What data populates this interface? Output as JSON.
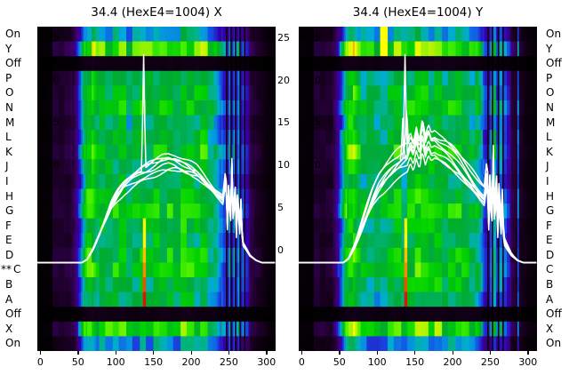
{
  "figure": {
    "background": "#ffffff",
    "text_color": "#000000",
    "trace_color": "#ffffff"
  },
  "left_axis": {
    "rows": [
      "On",
      "Y",
      "Off",
      "P",
      "O",
      "N",
      "M",
      "L",
      "K",
      "J",
      "I",
      "H",
      "G",
      "F",
      "E",
      "D",
      "C",
      "B",
      "A",
      "Off",
      "X",
      "On"
    ],
    "marker": "**",
    "marker_row_index": 16
  },
  "right_axis": {
    "rows": [
      "On",
      "Y",
      "Off",
      "P",
      "O",
      "N",
      "M",
      "L",
      "K",
      "J",
      "I",
      "H",
      "G",
      "F",
      "E",
      "D",
      "C",
      "B",
      "A",
      "Off",
      "X",
      "On"
    ]
  },
  "y_axis": {
    "tick_values": [
      25,
      20,
      15,
      10,
      5,
      0
    ],
    "gap_tick_values": [
      25,
      20,
      15,
      10,
      5,
      0
    ],
    "value_top": 26.3,
    "value_bottom": -11.9
  },
  "x_axis": {
    "tick_values": [
      0,
      50,
      100,
      150,
      200,
      250,
      300
    ],
    "range": [
      -4,
      312
    ]
  },
  "chart_data": [
    {
      "type": "heatmap",
      "title": "34.4 (HexE4=1004) X",
      "axis_label": "X",
      "seed": 11,
      "rows": [
        "On",
        "Y",
        "Off",
        "P",
        "O",
        "N",
        "M",
        "L",
        "K",
        "J",
        "I",
        "H",
        "G",
        "F",
        "E",
        "D",
        "C",
        "B",
        "A",
        "Off",
        "X",
        "On"
      ],
      "x_ticks": [
        0,
        50,
        100,
        150,
        200,
        250,
        300
      ],
      "y_ticks": [
        25,
        20,
        15,
        10,
        5,
        0
      ],
      "x_range": [
        -4,
        312
      ],
      "value_top": 26.3,
      "value_bottom": -11.9,
      "baseline": -1.5,
      "row_gains": [
        0.5,
        0.85,
        0.06,
        0.62,
        0.68,
        0.72,
        0.6,
        0.66,
        0.74,
        0.64,
        0.6,
        0.7,
        0.76,
        0.66,
        0.62,
        0.7,
        0.74,
        0.66,
        0.6,
        0.06,
        0.82,
        0.45
      ],
      "x_profile": [
        [
          -4,
          0.02
        ],
        [
          14,
          0.02
        ],
        [
          16,
          0.13
        ],
        [
          38,
          0.12
        ],
        [
          44,
          0.2
        ],
        [
          52,
          0.45
        ],
        [
          58,
          0.8
        ],
        [
          62,
          0.95
        ],
        [
          68,
          0.95
        ],
        [
          74,
          0.78
        ],
        [
          100,
          0.76
        ],
        [
          130,
          0.8
        ],
        [
          160,
          0.86
        ],
        [
          190,
          0.8
        ],
        [
          215,
          0.76
        ],
        [
          232,
          0.68
        ],
        [
          238,
          0.52
        ],
        [
          242,
          0.38
        ],
        [
          274,
          0.35
        ],
        [
          278,
          0.16
        ],
        [
          288,
          0.12
        ],
        [
          296,
          0.07
        ],
        [
          302,
          0.04
        ],
        [
          312,
          0.03
        ]
      ],
      "streaks": [
        [
          246,
          3,
          0.1
        ],
        [
          250,
          3,
          0.6
        ],
        [
          253,
          2,
          0.12
        ],
        [
          256,
          3,
          0.55
        ],
        [
          259,
          2,
          0.1
        ],
        [
          262,
          3,
          0.5
        ],
        [
          265,
          2,
          0.1
        ],
        [
          268,
          3,
          0.45
        ],
        [
          271,
          2,
          0.12
        ]
      ],
      "hot_line": {
        "x": 137,
        "rows": [
          13,
          18
        ],
        "v0": 0.88,
        "v1": 1.0
      },
      "hot_spot": {
        "x0": 132,
        "x1": 146,
        "rows": [
          1,
          1
        ],
        "value": 0.78
      },
      "colormap": [
        [
          0,
          "#000000"
        ],
        [
          0.06,
          "#140019"
        ],
        [
          0.14,
          "#3c0064"
        ],
        [
          0.22,
          "#3200b4"
        ],
        [
          0.3,
          "#1450e6"
        ],
        [
          0.38,
          "#00aadc"
        ],
        [
          0.44,
          "#00b478"
        ],
        [
          0.52,
          "#00aa32"
        ],
        [
          0.62,
          "#00d200"
        ],
        [
          0.72,
          "#46f000"
        ],
        [
          0.82,
          "#c8f500"
        ],
        [
          0.9,
          "#ffff00"
        ],
        [
          0.95,
          "#ff8c00"
        ],
        [
          1,
          "#dc1400"
        ]
      ],
      "profile": [
        [
          0,
          -1.5
        ],
        [
          55,
          -1.5
        ],
        [
          62,
          -1.1
        ],
        [
          70,
          0.2
        ],
        [
          78,
          2
        ],
        [
          86,
          4
        ],
        [
          94,
          5.8
        ],
        [
          102,
          7
        ],
        [
          112,
          8.2
        ],
        [
          122,
          9
        ],
        [
          132,
          9.6
        ],
        [
          142,
          10
        ],
        [
          152,
          10.4
        ],
        [
          162,
          10.9
        ],
        [
          170,
          11.1
        ],
        [
          178,
          11
        ],
        [
          188,
          10.6
        ],
        [
          198,
          10.2
        ],
        [
          208,
          9.7
        ],
        [
          218,
          8.8
        ],
        [
          228,
          7.8
        ],
        [
          236,
          7
        ],
        [
          242,
          6.4
        ],
        [
          246,
          9.8
        ],
        [
          248,
          3.2
        ],
        [
          250,
          9
        ],
        [
          252,
          2.6
        ],
        [
          254,
          10.8
        ],
        [
          256,
          3
        ],
        [
          258,
          9.2
        ],
        [
          260,
          2.2
        ],
        [
          262,
          8
        ],
        [
          264,
          1.6
        ],
        [
          266,
          6
        ],
        [
          268,
          1
        ],
        [
          272,
          0.4
        ],
        [
          278,
          -0.6
        ],
        [
          286,
          -1.2
        ],
        [
          294,
          -1.5
        ],
        [
          312,
          -1.5
        ]
      ],
      "trace_scales": [
        1.0,
        0.965,
        0.93,
        0.9,
        0.87,
        0.945,
        0.985
      ],
      "spikes": [
        {
          "trace": 0,
          "x": 137,
          "top": 23
        }
      ]
    },
    {
      "type": "heatmap",
      "title": "34.4 (HexE4=1004) Y",
      "axis_label": "Y",
      "seed": 37,
      "rows": [
        "On",
        "Y",
        "Off",
        "P",
        "O",
        "N",
        "M",
        "L",
        "K",
        "J",
        "I",
        "H",
        "G",
        "F",
        "E",
        "D",
        "C",
        "B",
        "A",
        "Off",
        "X",
        "On"
      ],
      "x_ticks": [
        0,
        50,
        100,
        150,
        200,
        250,
        300
      ],
      "y_ticks": [
        25,
        20,
        15,
        10,
        5,
        0
      ],
      "x_range": [
        -4,
        312
      ],
      "value_top": 26.3,
      "value_bottom": -11.9,
      "baseline": -1.5,
      "row_gains": [
        0.5,
        0.85,
        0.06,
        0.62,
        0.68,
        0.72,
        0.6,
        0.66,
        0.74,
        0.64,
        0.6,
        0.7,
        0.76,
        0.66,
        0.62,
        0.7,
        0.74,
        0.66,
        0.6,
        0.06,
        0.82,
        0.45
      ],
      "x_profile": [
        [
          -4,
          0.02
        ],
        [
          14,
          0.02
        ],
        [
          16,
          0.13
        ],
        [
          38,
          0.12
        ],
        [
          44,
          0.2
        ],
        [
          52,
          0.45
        ],
        [
          58,
          0.8
        ],
        [
          62,
          0.95
        ],
        [
          68,
          0.95
        ],
        [
          74,
          0.78
        ],
        [
          100,
          0.76
        ],
        [
          130,
          0.8
        ],
        [
          160,
          0.86
        ],
        [
          190,
          0.8
        ],
        [
          215,
          0.76
        ],
        [
          232,
          0.68
        ],
        [
          238,
          0.52
        ],
        [
          242,
          0.38
        ],
        [
          274,
          0.35
        ],
        [
          278,
          0.16
        ],
        [
          288,
          0.12
        ],
        [
          296,
          0.07
        ],
        [
          302,
          0.04
        ],
        [
          312,
          0.03
        ]
      ],
      "streaks": [
        [
          246,
          3,
          0.1
        ],
        [
          250,
          3,
          0.6
        ],
        [
          253,
          2,
          0.12
        ],
        [
          256,
          4,
          0.75
        ],
        [
          260,
          2,
          0.1
        ],
        [
          263,
          3,
          0.5
        ],
        [
          266,
          2,
          0.1
        ],
        [
          269,
          3,
          0.45
        ],
        [
          286,
          3,
          0.5
        ]
      ],
      "hot_line": {
        "x": 137,
        "rows": [
          13,
          18
        ],
        "v0": 0.88,
        "v1": 1.0
      },
      "hot_spot": {
        "x0": 103,
        "x1": 112,
        "rows": [
          0,
          1
        ],
        "value": 0.9
      },
      "colormap": [
        [
          0,
          "#000000"
        ],
        [
          0.06,
          "#140019"
        ],
        [
          0.14,
          "#3c0064"
        ],
        [
          0.22,
          "#3200b4"
        ],
        [
          0.3,
          "#1450e6"
        ],
        [
          0.38,
          "#00aadc"
        ],
        [
          0.44,
          "#00b478"
        ],
        [
          0.52,
          "#00aa32"
        ],
        [
          0.62,
          "#00d200"
        ],
        [
          0.72,
          "#46f000"
        ],
        [
          0.82,
          "#c8f500"
        ],
        [
          0.9,
          "#ffff00"
        ],
        [
          0.95,
          "#ff8c00"
        ],
        [
          1,
          "#dc1400"
        ]
      ],
      "profile": [
        [
          0,
          -1.5
        ],
        [
          55,
          -1.5
        ],
        [
          62,
          -1.0
        ],
        [
          70,
          0.5
        ],
        [
          78,
          2.5
        ],
        [
          86,
          4.5
        ],
        [
          94,
          6.5
        ],
        [
          102,
          8
        ],
        [
          112,
          9.2
        ],
        [
          122,
          10.2
        ],
        [
          130,
          10.8
        ],
        [
          136,
          11.2
        ],
        [
          140,
          11.5
        ],
        [
          144,
          12.8
        ],
        [
          148,
          11.8
        ],
        [
          152,
          13.6
        ],
        [
          156,
          12.2
        ],
        [
          160,
          14.6
        ],
        [
          164,
          12.6
        ],
        [
          168,
          13.8
        ],
        [
          172,
          12.8
        ],
        [
          176,
          13
        ],
        [
          182,
          12.6
        ],
        [
          190,
          12.2
        ],
        [
          198,
          11.6
        ],
        [
          208,
          10.6
        ],
        [
          218,
          9.4
        ],
        [
          228,
          8.2
        ],
        [
          236,
          7.2
        ],
        [
          242,
          6.6
        ],
        [
          246,
          10
        ],
        [
          248,
          3.4
        ],
        [
          250,
          9.4
        ],
        [
          252,
          2.8
        ],
        [
          254,
          11.2
        ],
        [
          256,
          3.2
        ],
        [
          258,
          9.6
        ],
        [
          260,
          2.4
        ],
        [
          262,
          8.4
        ],
        [
          264,
          1.8
        ],
        [
          266,
          6.2
        ],
        [
          268,
          1.2
        ],
        [
          272,
          0.5
        ],
        [
          278,
          -0.5
        ],
        [
          286,
          -1.2
        ],
        [
          294,
          -1.5
        ],
        [
          312,
          -1.5
        ]
      ],
      "trace_scales": [
        1.0,
        0.94,
        0.88,
        1.05,
        0.83,
        0.97,
        0.91,
        1.08
      ],
      "spikes": [
        {
          "trace": 0,
          "x": 137,
          "top": 23
        },
        {
          "trace": 3,
          "x": 139,
          "top": 17.5
        },
        {
          "trace": 5,
          "x": 134,
          "top": 15.5
        }
      ]
    }
  ]
}
